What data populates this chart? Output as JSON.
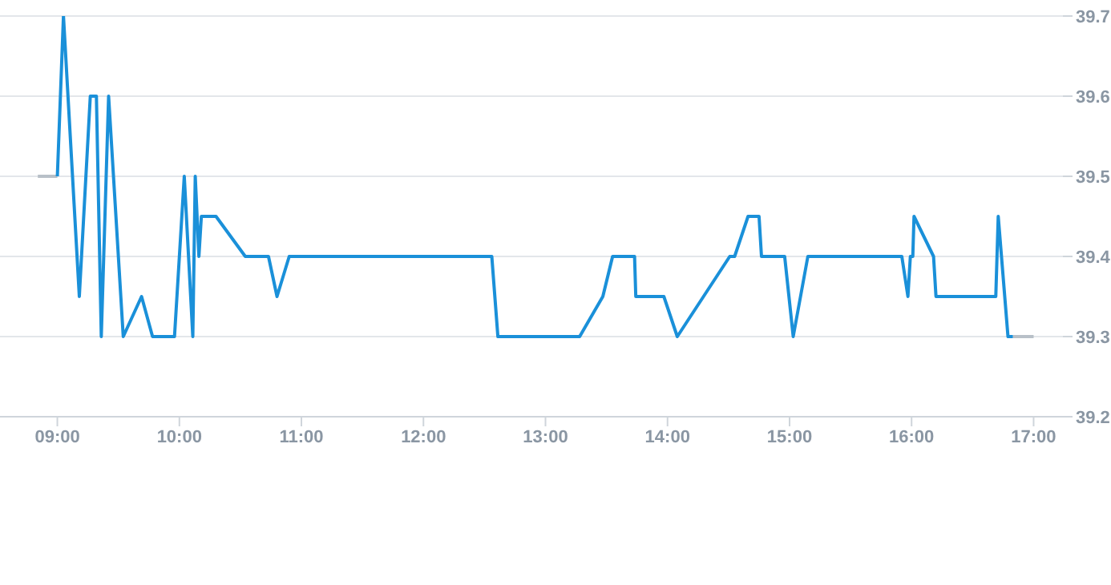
{
  "chart_data": {
    "type": "line",
    "grid": "y",
    "legend": false,
    "marker": "none",
    "line_style": "solid",
    "xlim": [
      8.53,
      17.24
    ],
    "xticks": [
      {
        "value": 9,
        "label": "09:00"
      },
      {
        "value": 10,
        "label": "10:00"
      },
      {
        "value": 11,
        "label": "11:00"
      },
      {
        "value": 12,
        "label": "12:00"
      },
      {
        "value": 13,
        "label": "13:00"
      },
      {
        "value": 14,
        "label": "14:00"
      },
      {
        "value": 15,
        "label": "15:00"
      },
      {
        "value": 16,
        "label": "16:00"
      },
      {
        "value": 17,
        "label": "17:00"
      }
    ],
    "ylim": [
      39.2,
      39.7
    ],
    "yticks": [
      39.2,
      39.3,
      39.4,
      39.5,
      39.6,
      39.7
    ],
    "series": [
      {
        "color": "#b8c0c8",
        "x": [
          8.84,
          9.0,
          12.0,
          16.83,
          17.0
        ],
        "values": [
          39.5,
          39.5,
          null,
          39.3,
          39.3
        ]
      },
      {
        "color": "#1a90d9",
        "x": [
          9.0,
          9.05,
          9.18,
          9.27,
          9.32,
          9.36,
          9.42,
          9.54,
          9.69,
          9.78,
          9.96,
          10.04,
          10.11,
          10.13,
          10.16,
          10.18,
          10.3,
          10.54,
          10.73,
          10.8,
          10.9,
          12.56,
          12.61,
          13.28,
          13.47,
          13.55,
          13.73,
          13.74,
          13.97,
          14.08,
          14.51,
          14.55,
          14.66,
          14.75,
          14.77,
          14.96,
          15.03,
          15.15,
          15.92,
          15.97,
          15.99,
          16.01,
          16.02,
          16.18,
          16.2,
          16.69,
          16.71,
          16.79,
          16.83
        ],
        "values": [
          39.5,
          39.7,
          39.35,
          39.6,
          39.6,
          39.3,
          39.6,
          39.3,
          39.35,
          39.3,
          39.3,
          39.5,
          39.3,
          39.5,
          39.4,
          39.45,
          39.45,
          39.4,
          39.4,
          39.35,
          39.4,
          39.4,
          39.3,
          39.3,
          39.35,
          39.4,
          39.4,
          39.35,
          39.35,
          39.3,
          39.4,
          39.4,
          39.45,
          39.45,
          39.4,
          39.4,
          39.3,
          39.4,
          39.4,
          39.35,
          39.4,
          39.4,
          39.45,
          39.4,
          39.35,
          39.35,
          39.45,
          39.3,
          39.3
        ]
      }
    ]
  }
}
